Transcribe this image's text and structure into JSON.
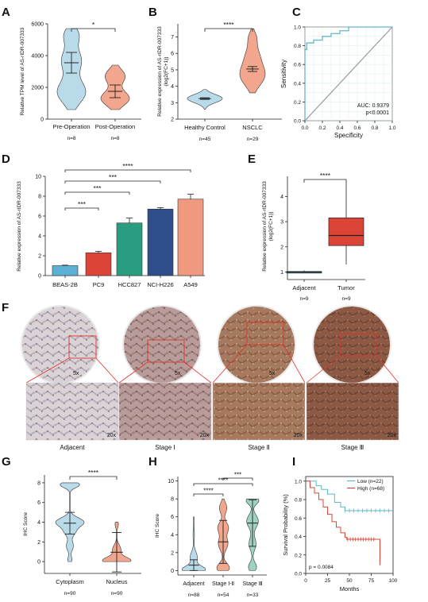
{
  "panels": {
    "A": "A",
    "B": "B",
    "C": "C",
    "D": "D",
    "E": "E",
    "F": "F",
    "G": "G",
    "H": "H",
    "I": "I"
  },
  "chart_data": [
    {
      "panel": "A",
      "type": "violin",
      "ylabel": "Relative TPM level of AS-rIDR-007333",
      "ylim": [
        0,
        6000
      ],
      "yticks": [
        0,
        2000,
        4000,
        6000
      ],
      "categories": [
        "Pre-Operation",
        "Post-Operation"
      ],
      "counts": [
        "n=8",
        "n=8"
      ],
      "means": [
        3550,
        1750
      ],
      "errors": [
        650,
        400
      ],
      "ranges": [
        [
          600,
          5700
        ],
        [
          600,
          3400
        ]
      ],
      "colors": [
        "#b9dbe9",
        "#f2a68e"
      ],
      "significance": "*"
    },
    {
      "panel": "B",
      "type": "violin",
      "ylabel": "Relative expression of AS-rIDR-007333 (log2(FC+1))",
      "ylim": [
        2,
        7.8
      ],
      "yticks": [
        2,
        3,
        4,
        5,
        6,
        7
      ],
      "categories": [
        "Healthy Control",
        "NSCLC"
      ],
      "counts": [
        "n=45",
        "n=29"
      ],
      "means": [
        3.25,
        5.05
      ],
      "errors": [
        0.05,
        0.15
      ],
      "ranges": [
        [
          2.6,
          3.8
        ],
        [
          3.6,
          7.5
        ]
      ],
      "colors": [
        "#b9dbe9",
        "#f2a68e"
      ],
      "significance": "****"
    },
    {
      "panel": "C",
      "type": "line",
      "subtype": "roc",
      "xlabel": "Specificity",
      "ylabel": "Sensitivity",
      "xlim": [
        0,
        1
      ],
      "ylim": [
        0,
        1
      ],
      "ticks": [
        "0.0",
        "0.2",
        "0.4",
        "0.6",
        "0.8",
        "1.0"
      ],
      "roc_x": [
        0,
        0,
        0.02,
        0.02,
        0.1,
        0.1,
        0.2,
        0.2,
        0.3,
        0.3,
        0.4,
        0.4,
        0.5,
        0.5,
        1
      ],
      "roc_y": [
        0,
        0.76,
        0.76,
        0.83,
        0.83,
        0.86,
        0.86,
        0.9,
        0.9,
        0.93,
        0.93,
        0.96,
        0.96,
        1,
        1
      ],
      "auc_text": "AUC: 0.9379",
      "p_text": "p<0.0001",
      "color": "#5fb8c9"
    },
    {
      "panel": "D",
      "type": "bar",
      "ylabel": "Relative expression of AS-rIDR-007333",
      "ylim": [
        0,
        10
      ],
      "yticks": [
        0,
        2,
        4,
        6,
        8,
        10
      ],
      "categories": [
        "BEAS-2B",
        "PC9",
        "HCC827",
        "NCI-H226",
        "A549"
      ],
      "values": [
        1.0,
        2.3,
        5.3,
        6.7,
        7.7
      ],
      "errors": [
        0.05,
        0.15,
        0.5,
        0.15,
        0.5
      ],
      "colors": [
        "#5ab1d4",
        "#dc4437",
        "#2a9d80",
        "#2f4d8a",
        "#ef9a7e"
      ],
      "significance": [
        {
          "to": "PC9",
          "label": "***"
        },
        {
          "to": "HCC827",
          "label": "***"
        },
        {
          "to": "NCI-H226",
          "label": "***"
        },
        {
          "to": "A549",
          "label": "****"
        }
      ]
    },
    {
      "panel": "E",
      "type": "box",
      "ylabel": "Relative expression of AS-rIDR-007333 (log2(FC+1))",
      "ylim": [
        0.7,
        4.8
      ],
      "yticks": [
        1,
        2,
        3,
        4
      ],
      "categories": [
        "Adjacent",
        "Tumor"
      ],
      "counts": [
        "n=9",
        "n=9"
      ],
      "boxes": [
        {
          "min": 0.95,
          "q1": 0.98,
          "median": 1.0,
          "q3": 1.02,
          "max": 1.06
        },
        {
          "min": 1.3,
          "q1": 2.05,
          "median": 2.45,
          "q3": 3.15,
          "max": 4.55
        }
      ],
      "colors": [
        "#5ab1d4",
        "#dc4437"
      ],
      "significance": "****"
    },
    {
      "panel": "G",
      "type": "violin",
      "ylabel": "IHC Score",
      "ylim": [
        -1.2,
        8.8
      ],
      "yticks": [
        0,
        2,
        4,
        6,
        8
      ],
      "categories": [
        "Cytoplasm",
        "Nucleus"
      ],
      "counts": [
        "n=90",
        "n=90"
      ],
      "means": [
        3.9,
        0.95
      ],
      "sds": [
        1.1,
        2.0
      ],
      "ranges": [
        [
          0,
          8
        ],
        [
          0,
          4
        ]
      ],
      "colors": [
        "#b9dbe9",
        "#f2a68e"
      ],
      "significance": "****"
    },
    {
      "panel": "H",
      "type": "violin",
      "ylabel": "IHC Score",
      "ylim": [
        -0.5,
        10.5
      ],
      "yticks": [
        0,
        2,
        4,
        6,
        8,
        10
      ],
      "categories": [
        "Adjacent",
        "Stage Ⅰ-Ⅱ",
        "Stage Ⅲ"
      ],
      "counts": [
        "n=88",
        "n=54",
        "n=33"
      ],
      "means": [
        0.6,
        3.2,
        5.3
      ],
      "sds": [
        0.6,
        2.4,
        2.6
      ],
      "ranges": [
        [
          0,
          6
        ],
        [
          0,
          8
        ],
        [
          0,
          8
        ]
      ],
      "colors": [
        "#b9dbe9",
        "#f2a68e",
        "#9fd2c3"
      ],
      "significance": [
        {
          "from": 0,
          "to": 1,
          "label": "****"
        },
        {
          "from": 0,
          "to": 2,
          "label": "****"
        },
        {
          "from": 1,
          "to": 2,
          "label": "***"
        }
      ]
    },
    {
      "panel": "I",
      "type": "line",
      "subtype": "kaplan-meier",
      "xlabel": "Months",
      "ylabel": "Survival Probability (%)",
      "xlim": [
        0,
        100
      ],
      "ylim": [
        0,
        1.05
      ],
      "xticks": [
        0,
        25,
        50,
        75,
        100
      ],
      "yticks": [
        0,
        0.2,
        0.4,
        0.6,
        0.8,
        1.0
      ],
      "series": [
        {
          "name": "Low (n=22)",
          "color": "#5fb8c9",
          "x": [
            0,
            12,
            18,
            25,
            33,
            40,
            45,
            100
          ],
          "y": [
            1,
            0.95,
            0.91,
            0.86,
            0.77,
            0.72,
            0.68,
            0.68
          ]
        },
        {
          "name": "High (n=68)",
          "color": "#dc4437",
          "x": [
            0,
            5,
            10,
            15,
            20,
            25,
            30,
            35,
            40,
            45,
            47,
            50,
            55,
            60,
            70,
            80,
            83,
            85
          ],
          "y": [
            1,
            0.93,
            0.87,
            0.8,
            0.72,
            0.64,
            0.56,
            0.5,
            0.44,
            0.39,
            0.37,
            0.37,
            0.37,
            0.37,
            0.37,
            0.37,
            0.37,
            0.09
          ]
        }
      ],
      "legend": "top-right",
      "p_text": "p = 0.0084"
    }
  ],
  "panel_f": {
    "top_mag": "5x",
    "bottom_mag": "20x",
    "labels": [
      "Adjacent",
      "Stage Ⅰ",
      "Stage Ⅱ",
      "Stage Ⅲ"
    ]
  }
}
